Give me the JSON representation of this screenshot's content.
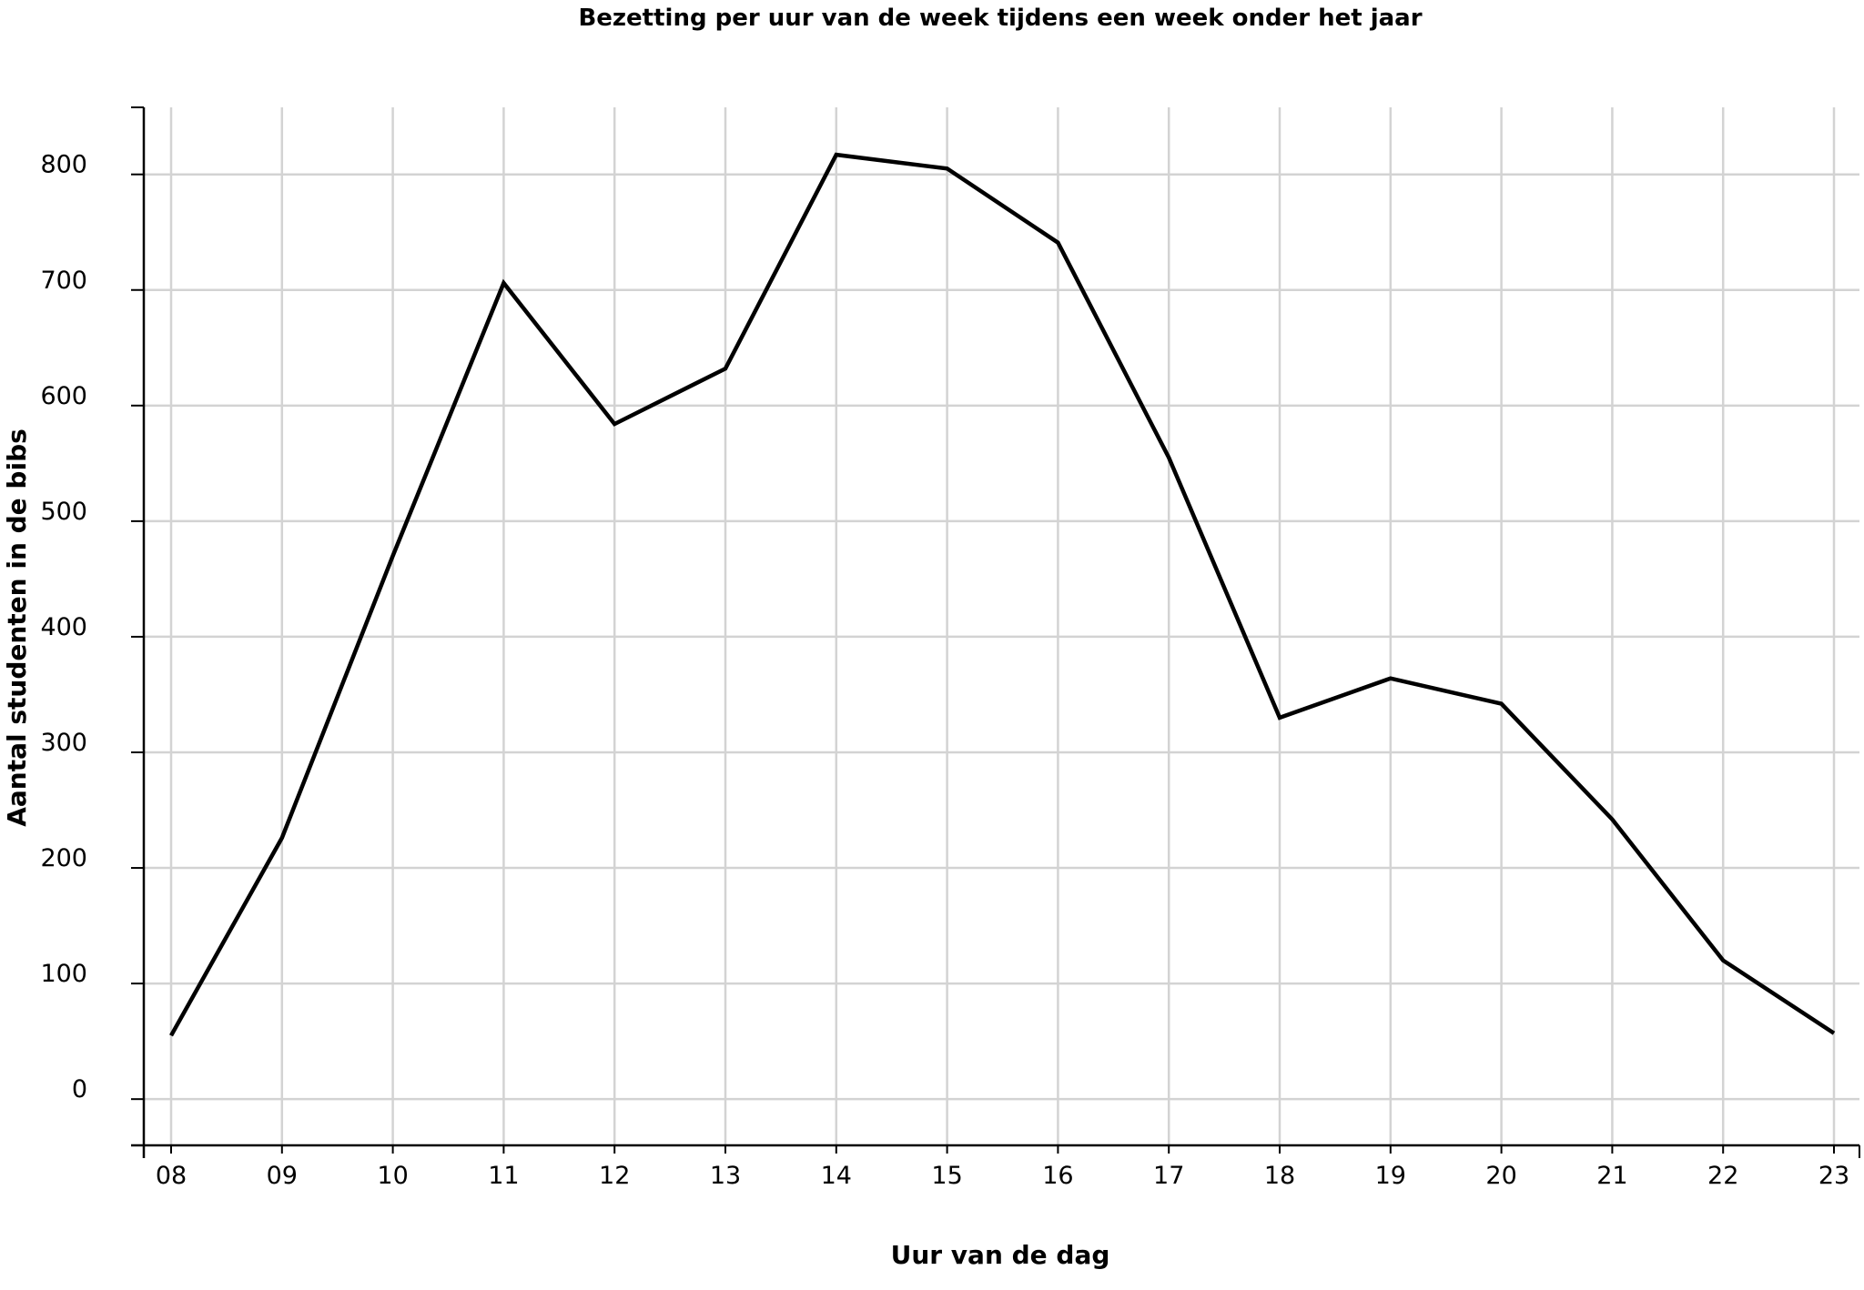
{
  "chart_data": {
    "type": "line",
    "title": "Bezetting per uur van de week tijdens een week onder het jaar",
    "xlabel": "Uur van de dag",
    "ylabel": "Aantal studenten in de bibs",
    "categories": [
      "08",
      "09",
      "10",
      "11",
      "12",
      "13",
      "14",
      "15",
      "16",
      "17",
      "18",
      "19",
      "20",
      "21",
      "22",
      "23"
    ],
    "yticks": [
      "0",
      "100",
      "200",
      "300",
      "400",
      "500",
      "600",
      "700",
      "800"
    ],
    "ylim": [
      -40,
      858
    ],
    "grid": true,
    "legend": "none",
    "series": [
      {
        "values": [
          55,
          226,
          470,
          706,
          584,
          632,
          817,
          805,
          741,
          555,
          330,
          364,
          342,
          242,
          120,
          57
        ],
        "color": "#000000"
      }
    ]
  }
}
